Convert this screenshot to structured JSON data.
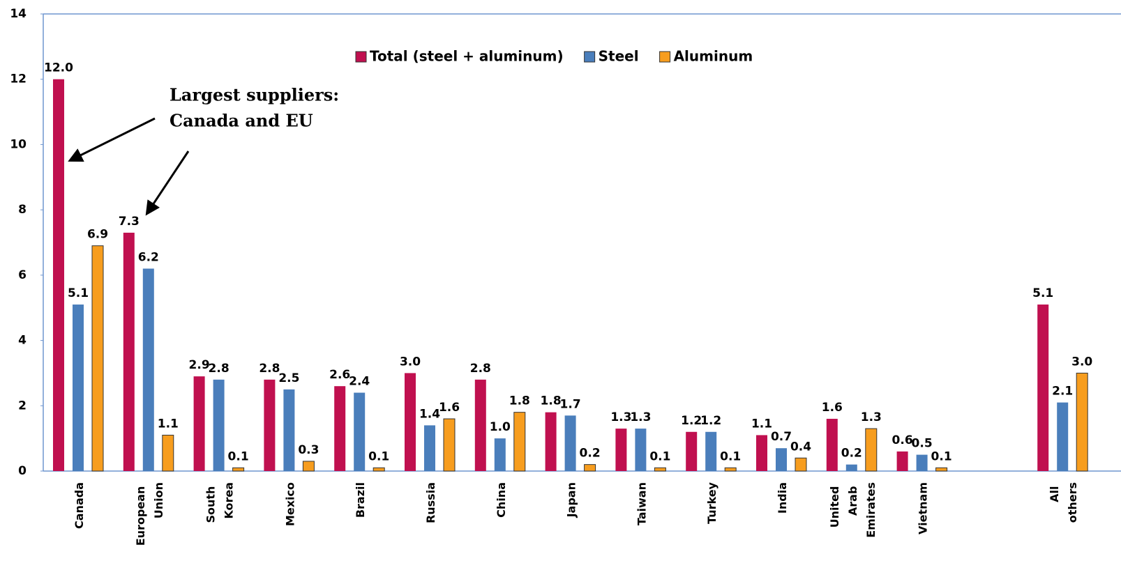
{
  "chart_data": {
    "type": "bar",
    "categories": [
      "Canada",
      "European Union",
      "South Korea",
      "Mexico",
      "Brazil",
      "Russia",
      "China",
      "Japan",
      "Taiwan",
      "Turkey",
      "India",
      "United Arab Emirates",
      "Vietnam",
      null,
      "All others"
    ],
    "series": [
      {
        "name": "Total (steel + aluminum)",
        "color": "#c0104f",
        "values": [
          12.0,
          7.3,
          2.9,
          2.8,
          2.6,
          3.0,
          2.8,
          1.8,
          1.3,
          1.2,
          1.1,
          1.6,
          0.6,
          null,
          5.1
        ],
        "value_labels": [
          "12.0",
          "7.3",
          "2.9",
          "2.8",
          "2.6",
          "3.0",
          "2.8",
          "1.8",
          "1.3",
          "1.2",
          "1.1",
          "1.6",
          "0.6",
          null,
          "5.1"
        ]
      },
      {
        "name": "Steel",
        "color": "#4a7ebb",
        "values": [
          5.1,
          6.2,
          2.8,
          2.5,
          2.4,
          1.4,
          1.0,
          1.7,
          1.3,
          1.2,
          0.7,
          0.2,
          0.5,
          null,
          2.1
        ],
        "value_labels": [
          "5.1",
          "6.2",
          "2.8",
          "2.5",
          "2.4",
          "1.4",
          "1.0",
          "1.7",
          "1.3",
          "1.2",
          "0.7",
          "0.2",
          "0.5",
          null,
          "2.1"
        ]
      },
      {
        "name": "Aluminum",
        "color": "#f79d1e",
        "values": [
          6.9,
          1.1,
          0.1,
          0.3,
          0.1,
          1.6,
          1.8,
          0.2,
          0.1,
          0.1,
          0.4,
          1.3,
          0.1,
          null,
          3.0
        ],
        "value_labels": [
          "6.9",
          "1.1",
          "0.1",
          "0.3",
          "0.1",
          "1.6",
          "1.8",
          "0.2",
          "0.1",
          "0.1",
          "0.4",
          "1.3",
          "0.1",
          null,
          "3.0"
        ]
      }
    ],
    "annotation": [
      "Largest suppliers:",
      "Canada and EU"
    ],
    "ylim": [
      0,
      14
    ],
    "yticks": [
      0,
      2,
      4,
      6,
      8,
      10,
      12,
      14
    ],
    "grid": false,
    "legend": "top"
  }
}
